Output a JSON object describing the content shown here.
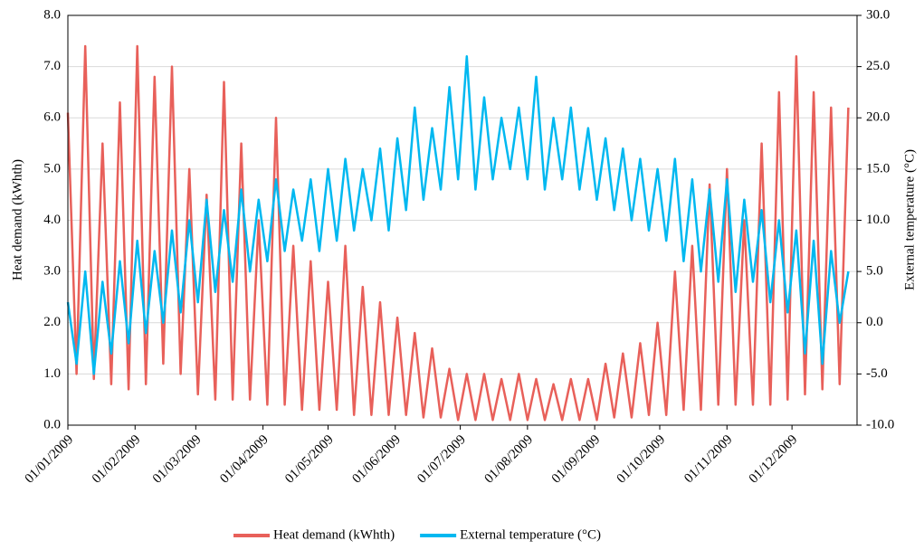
{
  "chart_data": {
    "type": "line",
    "y_label": "Heat demand (kWhth)",
    "y2_label": "External temperature (°C)",
    "xlim": [
      "01/01/2009",
      "31/12/2009"
    ],
    "xticks": [
      "01/01/2009",
      "01/02/2009",
      "01/03/2009",
      "01/04/2009",
      "01/05/2009",
      "01/06/2009",
      "01/07/2009",
      "01/08/2009",
      "01/09/2009",
      "01/10/2009",
      "01/11/2009",
      "01/12/2009"
    ],
    "ylim": [
      0,
      8
    ],
    "yticks": [
      {
        "value": 0,
        "label": "0.0"
      },
      {
        "value": 1,
        "label": "1.0"
      },
      {
        "value": 2,
        "label": "2.0"
      },
      {
        "value": 3,
        "label": "3.0"
      },
      {
        "value": 4,
        "label": "4.0"
      },
      {
        "value": 5,
        "label": "5.0"
      },
      {
        "value": 6,
        "label": "6.0"
      },
      {
        "value": 7,
        "label": "7.0"
      },
      {
        "value": 8,
        "label": "8.0"
      }
    ],
    "y2lim": [
      -10,
      30
    ],
    "y2ticks": [
      {
        "value": -10,
        "label": "-10.0"
      },
      {
        "value": -5,
        "label": "-5.0"
      },
      {
        "value": 0,
        "label": "0.0"
      },
      {
        "value": 5,
        "label": "5.0"
      },
      {
        "value": 10,
        "label": "10.0"
      },
      {
        "value": 15,
        "label": "15.0"
      },
      {
        "value": 20,
        "label": "20.0"
      },
      {
        "value": 25,
        "label": "25.0"
      },
      {
        "value": 30,
        "label": "30.0"
      }
    ],
    "grid": true,
    "legend": "bottom",
    "x": [
      "01/01/2009",
      "05/01/2009",
      "09/01/2009",
      "13/01/2009",
      "17/01/2009",
      "21/01/2009",
      "25/01/2009",
      "29/01/2009",
      "02/02/2009",
      "06/02/2009",
      "10/02/2009",
      "14/02/2009",
      "18/02/2009",
      "22/02/2009",
      "26/02/2009",
      "02/03/2009",
      "06/03/2009",
      "10/03/2009",
      "14/03/2009",
      "18/03/2009",
      "22/03/2009",
      "26/03/2009",
      "30/03/2009",
      "03/04/2009",
      "07/04/2009",
      "11/04/2009",
      "15/04/2009",
      "19/04/2009",
      "23/04/2009",
      "27/04/2009",
      "01/05/2009",
      "05/05/2009",
      "09/05/2009",
      "13/05/2009",
      "17/05/2009",
      "21/05/2009",
      "25/05/2009",
      "29/05/2009",
      "02/06/2009",
      "06/06/2009",
      "10/06/2009",
      "14/06/2009",
      "18/06/2009",
      "22/06/2009",
      "26/06/2009",
      "30/06/2009",
      "04/07/2009",
      "08/07/2009",
      "12/07/2009",
      "16/07/2009",
      "20/07/2009",
      "24/07/2009",
      "28/07/2009",
      "01/08/2009",
      "05/08/2009",
      "09/08/2009",
      "13/08/2009",
      "17/08/2009",
      "21/08/2009",
      "25/08/2009",
      "29/08/2009",
      "02/09/2009",
      "06/09/2009",
      "10/09/2009",
      "14/09/2009",
      "18/09/2009",
      "22/09/2009",
      "26/09/2009",
      "30/09/2009",
      "04/10/2009",
      "08/10/2009",
      "12/10/2009",
      "16/10/2009",
      "20/10/2009",
      "24/10/2009",
      "28/10/2009",
      "01/11/2009",
      "05/11/2009",
      "09/11/2009",
      "13/11/2009",
      "17/11/2009",
      "21/11/2009",
      "25/11/2009",
      "29/11/2009",
      "03/12/2009",
      "07/12/2009",
      "11/12/2009",
      "15/12/2009",
      "19/12/2009",
      "23/12/2009",
      "27/12/2009"
    ],
    "series": [
      {
        "name": "Heat demand (kWhth)",
        "color": "#e8605a",
        "values": [
          6.1,
          1.0,
          7.4,
          0.9,
          5.5,
          0.8,
          6.3,
          0.7,
          7.4,
          0.8,
          6.8,
          1.2,
          7.0,
          1.0,
          5.0,
          0.6,
          4.5,
          0.5,
          6.7,
          0.5,
          5.5,
          0.5,
          4.0,
          0.4,
          6.0,
          0.4,
          3.5,
          0.3,
          3.2,
          0.3,
          2.8,
          0.3,
          3.5,
          0.2,
          2.7,
          0.2,
          2.4,
          0.2,
          2.1,
          0.2,
          1.8,
          0.15,
          1.5,
          0.15,
          1.1,
          0.1,
          1.0,
          0.1,
          1.0,
          0.1,
          0.9,
          0.1,
          1.0,
          0.1,
          0.9,
          0.1,
          0.8,
          0.1,
          0.9,
          0.1,
          0.9,
          0.1,
          1.2,
          0.15,
          1.4,
          0.15,
          1.6,
          0.2,
          2.0,
          0.2,
          3.0,
          0.3,
          3.5,
          0.3,
          4.7,
          0.4,
          5.0,
          0.4,
          4.0,
          0.4,
          5.5,
          0.4,
          6.5,
          0.5,
          7.2,
          0.6,
          6.5,
          0.7,
          6.2,
          0.8,
          6.2
        ]
      },
      {
        "name": "External temperature (°C)",
        "color": "#00b8f0",
        "axis": "y2",
        "values": [
          2,
          -4,
          5,
          -5,
          4,
          -3,
          6,
          -2,
          8,
          -1,
          7,
          0,
          9,
          1,
          10,
          2,
          12,
          3,
          11,
          4,
          13,
          5,
          12,
          6,
          14,
          7,
          13,
          8,
          14,
          7,
          15,
          8,
          16,
          9,
          15,
          10,
          17,
          9,
          18,
          11,
          21,
          12,
          19,
          13,
          23,
          14,
          26,
          13,
          22,
          14,
          20,
          15,
          21,
          14,
          24,
          13,
          20,
          14,
          21,
          13,
          19,
          12,
          18,
          11,
          17,
          10,
          16,
          9,
          15,
          8,
          16,
          6,
          14,
          5,
          13,
          4,
          14,
          3,
          12,
          4,
          11,
          2,
          10,
          1,
          9,
          -3,
          8,
          -4,
          7,
          0,
          5
        ]
      }
    ]
  }
}
